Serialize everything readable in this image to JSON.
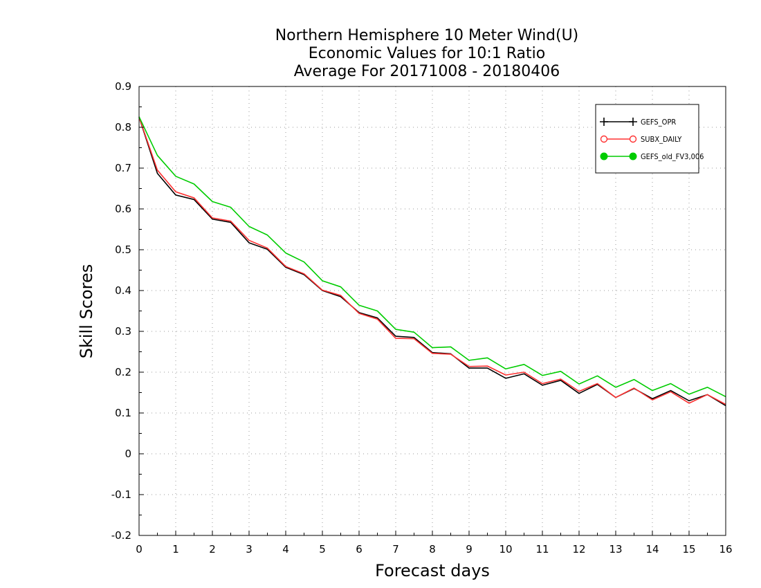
{
  "chart_data": {
    "type": "line",
    "title_lines": [
      "Northern Hemisphere 10 Meter Wind(U)",
      "Economic Values for 10:1 Ratio",
      "Average For 20171008 - 20180406"
    ],
    "xlabel": "Forecast days",
    "ylabel": "Skill Scores",
    "xlim": [
      0,
      16
    ],
    "ylim": [
      -0.2,
      0.9
    ],
    "xticks": [
      "0",
      "1",
      "2",
      "3",
      "4",
      "5",
      "6",
      "7",
      "8",
      "9",
      "10",
      "11",
      "12",
      "13",
      "14",
      "15",
      "16"
    ],
    "yticks": [
      "-0.2",
      "-0.1",
      "0",
      "0.1",
      "0.2",
      "0.3",
      "0.4",
      "0.5",
      "0.6",
      "0.7",
      "0.8",
      "0.9"
    ],
    "grid": true,
    "legend_position": "top-right",
    "x": [
      0,
      0.5,
      1,
      1.5,
      2,
      2.5,
      3,
      3.5,
      4,
      4.5,
      5,
      5.5,
      6,
      6.5,
      7,
      7.5,
      8,
      8.5,
      9,
      9.5,
      10,
      10.5,
      11,
      11.5,
      12,
      12.5,
      13,
      13.5,
      14,
      14.5,
      15,
      15.5,
      16
    ],
    "series": [
      {
        "name": "GEFS_OPR",
        "color": "#000000",
        "marker": "plus",
        "values": [
          0.825,
          0.687,
          0.634,
          0.623,
          0.575,
          0.567,
          0.517,
          0.501,
          0.457,
          0.439,
          0.4,
          0.385,
          0.346,
          0.333,
          0.288,
          0.285,
          0.248,
          0.245,
          0.21,
          0.21,
          0.185,
          0.196,
          0.168,
          0.18,
          0.148,
          0.17,
          0.138,
          0.16,
          0.135,
          0.155,
          0.13,
          0.145,
          0.118
        ]
      },
      {
        "name": "SUBX_DAILY",
        "color": "#ff3030",
        "marker": "open-circle",
        "values": [
          0.825,
          0.695,
          0.642,
          0.627,
          0.578,
          0.57,
          0.523,
          0.504,
          0.459,
          0.441,
          0.401,
          0.388,
          0.344,
          0.33,
          0.283,
          0.282,
          0.246,
          0.244,
          0.214,
          0.215,
          0.193,
          0.2,
          0.172,
          0.183,
          0.153,
          0.172,
          0.138,
          0.161,
          0.132,
          0.152,
          0.124,
          0.145,
          0.121
        ]
      },
      {
        "name": "GEFS_old_FV3,006",
        "color": "#00cc00",
        "marker": "filled-circle",
        "values": [
          0.826,
          0.731,
          0.68,
          0.661,
          0.618,
          0.604,
          0.557,
          0.536,
          0.492,
          0.47,
          0.424,
          0.409,
          0.364,
          0.35,
          0.305,
          0.298,
          0.26,
          0.262,
          0.229,
          0.235,
          0.208,
          0.219,
          0.192,
          0.202,
          0.171,
          0.191,
          0.163,
          0.182,
          0.155,
          0.172,
          0.146,
          0.163,
          0.14
        ]
      }
    ]
  }
}
